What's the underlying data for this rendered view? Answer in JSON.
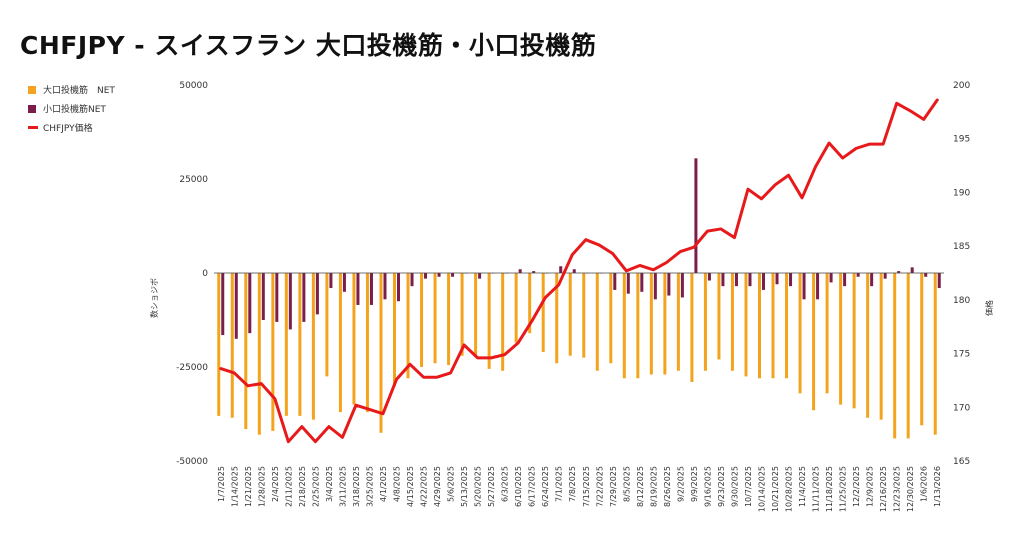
{
  "title": "CHFJPY - スイスフラン 大口投機筋・小口投機筋",
  "chart_data": {
    "type": "bar",
    "title": "CHFJPY - スイスフラン 大口投機筋・小口投機筋",
    "ylabel": "数ショジボ",
    "y2label": "価格",
    "ylim": [
      -50000,
      50000
    ],
    "y2lim": [
      165,
      200
    ],
    "yticks": [
      "50000",
      "25000",
      "0",
      "-25000",
      "-50000"
    ],
    "y2ticks": [
      "200",
      "195",
      "190",
      "185",
      "180",
      "175",
      "170",
      "165"
    ],
    "grid": false,
    "legend_position": "top-left",
    "x": [
      "1/7/2025",
      "1/14/2025",
      "1/21/2025",
      "1/28/2025",
      "2/4/2025",
      "2/11/2025",
      "2/18/2025",
      "2/25/2025",
      "3/4/2025",
      "3/11/2025",
      "3/18/2025",
      "3/25/2025",
      "4/1/2025",
      "4/8/2025",
      "4/15/2025",
      "4/22/2025",
      "4/29/2025",
      "5/6/2025",
      "5/13/2025",
      "5/20/2025",
      "5/27/2025",
      "6/3/2025",
      "6/10/2025",
      "6/17/2025",
      "6/24/2025",
      "7/1/2025",
      "7/8/2025",
      "7/15/2025",
      "7/22/2025",
      "7/29/2025",
      "8/5/2025",
      "8/12/2025",
      "8/19/2025",
      "8/26/2025",
      "9/2/2025",
      "9/9/2025",
      "9/16/2025",
      "9/23/2025",
      "9/30/2025",
      "10/7/2025",
      "10/14/2025",
      "10/21/2025",
      "10/28/2025",
      "11/4/2025",
      "11/11/2025",
      "11/18/2025",
      "11/25/2025",
      "12/2/2025",
      "12/9/2025",
      "12/16/2025",
      "12/23/2025",
      "12/30/2025",
      "1/6/2026",
      "1/13/2026"
    ],
    "xticks_shown": [
      "1/7/2025",
      "1/14/2025",
      "1/21/2025",
      "1/28/2025",
      "2/4/2025",
      "2/11/2025",
      "2/18/2025",
      "2/25/2025",
      "3/4/2025",
      "3/11/2025",
      "3/18/2025",
      "3/25/2025",
      "4/1/2025",
      "4/8/2025",
      "4/15/2025",
      "4/22/2025",
      "4/29/2025",
      "5/6/2025",
      "5/13/2025",
      "5/20/2025",
      "5/27/2025",
      "6/3/2025",
      "6/10/2025",
      "6/17/2025",
      "6/24/2025",
      "7/1/2025",
      "7/8/2025",
      "7/15/2025",
      "7/22/2025",
      "7/29/2025",
      "8/5/2025",
      "8/12/2025",
      "8/19/2025",
      "8/26/2025",
      "9/2/2025",
      "9/9/2025",
      "9/16/2025",
      "9/23/2025",
      "9/30/2025",
      "10/7/2025",
      "10/14/2025",
      "10/21/2025",
      "10/28/2025",
      "11/4/2025",
      "11/11/2025",
      "11/18/2025",
      "11/25/2025",
      "12/2/2025",
      "12/9/2025",
      "12/16/2025",
      "12/23/2025",
      "12/30/2025",
      "1/6/2026",
      "1/13/2026"
    ],
    "series": [
      {
        "name": "大口投機筋　NET",
        "type": "bar",
        "axis": "left",
        "color": "#f4a41c",
        "values": [
          -38000,
          -38500,
          -41500,
          -43000,
          -42000,
          -38000,
          -38000,
          -39000,
          -27500,
          -37000,
          -35000,
          -37000,
          -42500,
          -30000,
          -28000,
          -25000,
          -24000,
          -24500,
          -22000,
          -22000,
          -25500,
          -26000,
          -18500,
          -16000,
          -21000,
          -24000,
          -22000,
          -22500,
          -26000,
          -24000,
          -28000,
          -28000,
          -27000,
          -27000,
          -26000,
          -29000,
          -26000,
          -23000,
          -26000,
          -27500,
          -28000,
          -28000,
          -28000,
          -32000,
          -36500,
          -32000,
          -35000,
          -36000,
          -38500,
          -39000,
          -44000,
          -44000,
          -40500,
          -43000
        ]
      },
      {
        "name": "小口投機筋NET",
        "type": "bar",
        "axis": "left",
        "color": "#7a1e4a",
        "values": [
          -16500,
          -17500,
          -16000,
          -12500,
          -13000,
          -15000,
          -13000,
          -11000,
          -4000,
          -5000,
          -8500,
          -8500,
          -7000,
          -7500,
          -3500,
          -1500,
          -1000,
          -1000,
          0,
          -1500,
          0,
          0,
          1000,
          500,
          0,
          1800,
          1000,
          0,
          0,
          -4500,
          -5500,
          -5000,
          -7000,
          -6000,
          -6500,
          30500,
          -2000,
          -3500,
          -3500,
          -3500,
          -4500,
          -3000,
          -3500,
          -7000,
          -7000,
          -2500,
          -3500,
          -1000,
          -3500,
          -1500,
          500,
          1500,
          -1000,
          -4000
        ]
      },
      {
        "name": "CHFJPY価格",
        "type": "line",
        "axis": "right",
        "color": "#e8191a",
        "values": [
          173.6,
          173.2,
          172.0,
          172.2,
          170.8,
          166.8,
          168.2,
          166.8,
          168.2,
          167.2,
          170.2,
          169.8,
          169.4,
          172.6,
          174.0,
          172.8,
          172.8,
          173.2,
          175.8,
          174.6,
          174.6,
          174.9,
          176.0,
          178.0,
          180.2,
          181.4,
          184.2,
          185.6,
          185.1,
          184.3,
          182.7,
          183.2,
          182.8,
          183.5,
          184.5,
          184.9,
          186.4,
          186.6,
          185.8,
          190.3,
          189.4,
          190.7,
          191.6,
          189.5,
          192.4,
          194.6,
          193.2,
          194.1,
          194.5,
          194.5,
          198.3,
          197.6,
          196.8,
          198.6
        ]
      }
    ]
  }
}
